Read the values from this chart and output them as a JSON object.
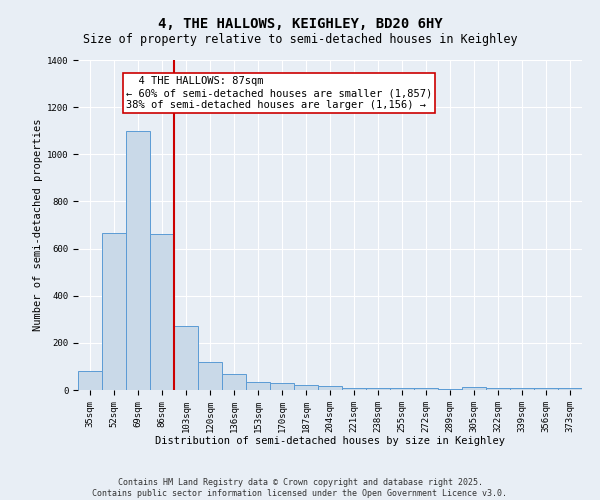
{
  "title": "4, THE HALLOWS, KEIGHLEY, BD20 6HY",
  "subtitle": "Size of property relative to semi-detached houses in Keighley",
  "xlabel": "Distribution of semi-detached houses by size in Keighley",
  "ylabel": "Number of semi-detached properties",
  "categories": [
    "35sqm",
    "52sqm",
    "69sqm",
    "86sqm",
    "103sqm",
    "120sqm",
    "136sqm",
    "153sqm",
    "170sqm",
    "187sqm",
    "204sqm",
    "221sqm",
    "238sqm",
    "255sqm",
    "272sqm",
    "289sqm",
    "305sqm",
    "322sqm",
    "339sqm",
    "356sqm",
    "373sqm"
  ],
  "values": [
    80,
    665,
    1100,
    660,
    270,
    120,
    70,
    35,
    30,
    20,
    15,
    10,
    10,
    7,
    7,
    5,
    12,
    10,
    8,
    7,
    7
  ],
  "bar_color": "#c9d9e8",
  "bar_edge_color": "#5b9bd5",
  "annotation_label": "4 THE HALLOWS: 87sqm",
  "smaller_pct": "← 60% of semi-detached houses are smaller (1,857)",
  "larger_pct": "38% of semi-detached houses are larger (1,156) →",
  "annotation_box_color": "#ffffff",
  "annotation_box_edge": "#cc0000",
  "vline_color": "#cc0000",
  "background_color": "#e8eef5",
  "plot_bg_color": "#e8eef5",
  "ylim": [
    0,
    1400
  ],
  "yticks": [
    0,
    200,
    400,
    600,
    800,
    1000,
    1200,
    1400
  ],
  "footer_line1": "Contains HM Land Registry data © Crown copyright and database right 2025.",
  "footer_line2": "Contains public sector information licensed under the Open Government Licence v3.0.",
  "title_fontsize": 10,
  "subtitle_fontsize": 8.5,
  "axis_label_fontsize": 7.5,
  "tick_fontsize": 6.5,
  "annotation_fontsize": 7.5,
  "footer_fontsize": 6
}
